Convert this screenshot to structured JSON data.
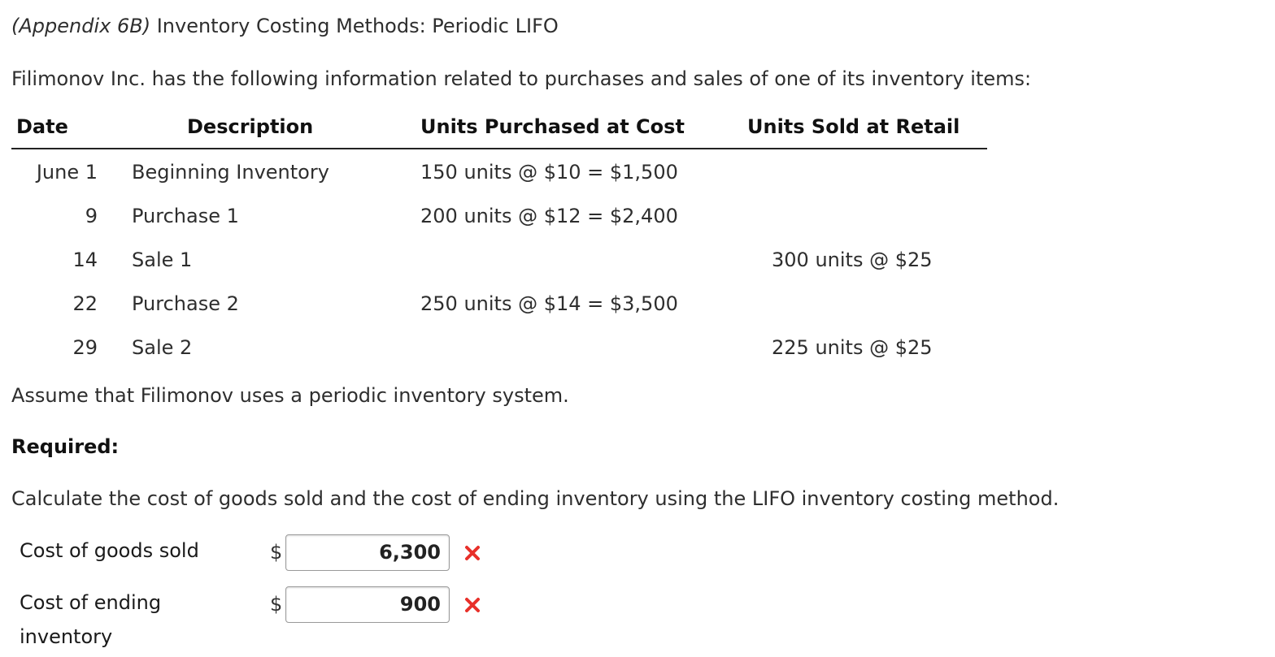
{
  "header": {
    "title_tag": "(Appendix 6B)",
    "title_text": "Inventory Costing Methods: Periodic LIFO"
  },
  "intro": "Filimonov Inc. has the following information related to purchases and sales of one of its inventory items:",
  "table": {
    "headers": {
      "date": "Date",
      "description": "Description",
      "purchased": "Units Purchased at Cost",
      "sold": "Units Sold at Retail"
    },
    "rows": [
      {
        "date": "June 1",
        "description": "Beginning Inventory",
        "purchased": "150 units @ $10 = $1,500",
        "sold": ""
      },
      {
        "date": "9",
        "description": "Purchase 1",
        "purchased": "200 units @ $12 = $2,400",
        "sold": ""
      },
      {
        "date": "14",
        "description": "Sale 1",
        "purchased": "",
        "sold": "300 units @ $25"
      },
      {
        "date": "22",
        "description": "Purchase 2",
        "purchased": "250 units @ $14 = $3,500",
        "sold": ""
      },
      {
        "date": "29",
        "description": "Sale 2",
        "purchased": "",
        "sold": "225 units @ $25"
      }
    ]
  },
  "assumption": "Assume that Filimonov uses a periodic inventory system.",
  "required_label": "Required:",
  "instruction": "Calculate the cost of goods sold and the cost of ending inventory using the LIFO inventory costing method.",
  "answers": {
    "cogs": {
      "label": "Cost of goods sold",
      "currency": "$",
      "value": "6,300",
      "status": "incorrect"
    },
    "ending": {
      "label_line1": "Cost of ending",
      "label_line2": "inventory",
      "currency": "$",
      "value": "900",
      "status": "incorrect"
    }
  },
  "colors": {
    "incorrect_mark": "#e8302a",
    "text": "#2e2e2e"
  },
  "icons": {
    "incorrect": "x-mark-icon"
  }
}
